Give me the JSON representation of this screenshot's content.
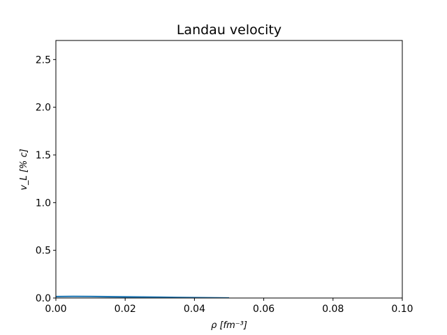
{
  "chart_data": {
    "type": "line",
    "title": "Landau velocity",
    "xlabel": "ρ [fm⁻³]",
    "ylabel": "v_L [% c]",
    "xlim": [
      0.0,
      0.1
    ],
    "ylim": [
      0.0,
      2.7
    ],
    "xticks": [
      0.0,
      0.02,
      0.04,
      0.06,
      0.08,
      0.1
    ],
    "xtick_labels": [
      "0.00",
      "0.02",
      "0.04",
      "0.06",
      "0.08",
      "0.10"
    ],
    "yticks": [
      0.0,
      0.5,
      1.0,
      1.5,
      2.0,
      2.5
    ],
    "ytick_labels": [
      "0.0",
      "0.5",
      "1.0",
      "1.5",
      "2.0",
      "2.5"
    ],
    "grid": false,
    "legend": "none",
    "series": [
      {
        "color": "#1f77b4",
        "x": [
          0.0,
          0.005,
          0.01,
          0.015,
          0.02,
          0.025,
          0.03,
          0.035,
          0.04,
          0.045,
          0.05
        ],
        "y": [
          0.015,
          0.017,
          0.016,
          0.014,
          0.012,
          0.01,
          0.008,
          0.006,
          0.004,
          0.002,
          0.0
        ]
      }
    ]
  }
}
